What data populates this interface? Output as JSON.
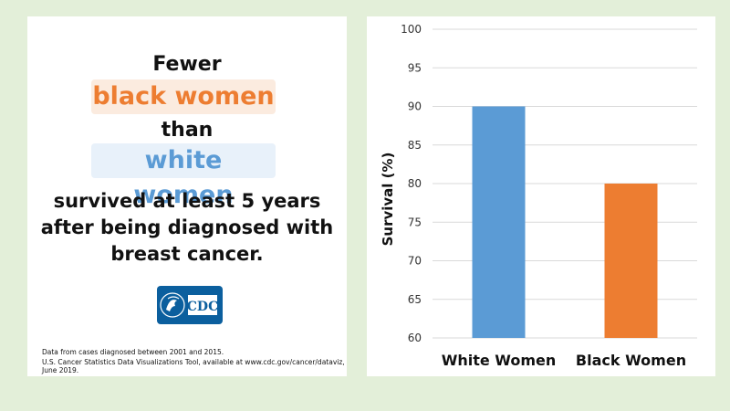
{
  "infographic": {
    "line1": "Fewer",
    "highlight_black": "black women",
    "line2": "than",
    "highlight_white": "white women",
    "body": "survived at least 5 years after being diagnosed with breast cancer.",
    "logo_text": "CDC",
    "footnote1": "Data from cases diagnosed between 2001 and 2015.",
    "footnote2": "U.S. Cancer Statistics Data Visualizations Tool, available at www.cdc.gov/cancer/dataviz, June 2019."
  },
  "colors": {
    "white_women": "#5b9bd5",
    "black_women": "#ed7d31",
    "background": "#e3efd9",
    "cdc_blue": "#0b5f9e"
  },
  "chart_data": {
    "type": "bar",
    "categories": [
      "White Women",
      "Black Women"
    ],
    "values": [
      90,
      80
    ],
    "bar_colors": [
      "#5b9bd5",
      "#ed7d31"
    ],
    "title": "",
    "xlabel": "",
    "ylabel": "Survival (%)",
    "ylim": [
      60,
      100
    ],
    "yticks": [
      60,
      65,
      70,
      75,
      80,
      85,
      90,
      95,
      100
    ],
    "grid": true,
    "legend": "none"
  }
}
